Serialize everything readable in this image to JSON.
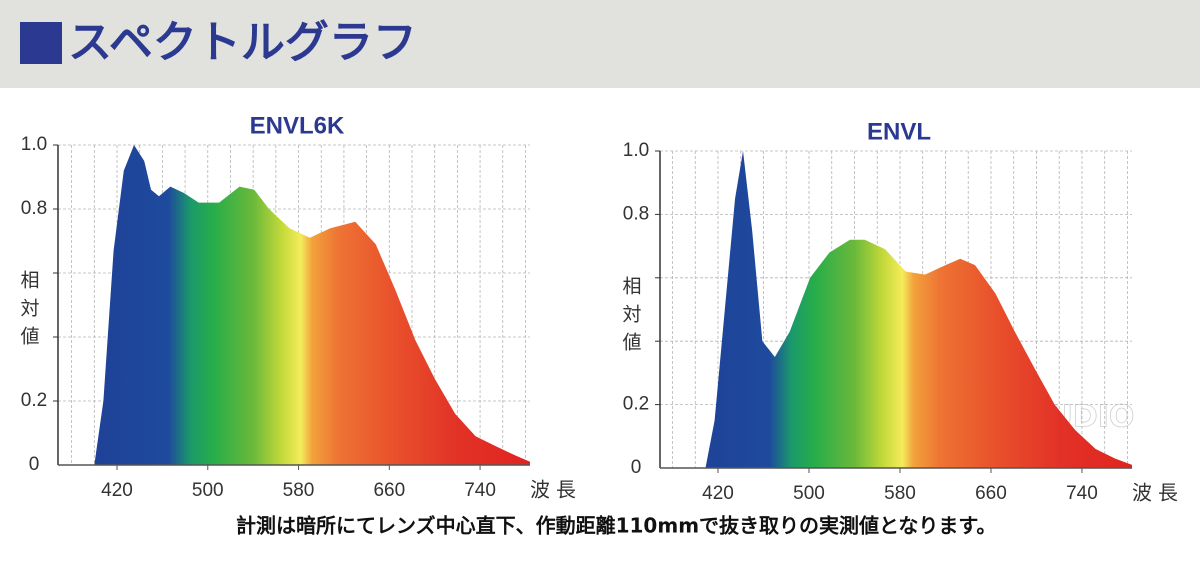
{
  "header": {
    "title": "スペクトルグラフ"
  },
  "chart_data": [
    {
      "type": "area",
      "title": "ENVL6K",
      "xlabel": "波長",
      "ylabel": "相対値",
      "x": [
        400,
        408,
        417,
        426,
        435,
        444,
        450,
        457,
        467,
        479,
        492,
        510,
        528,
        541,
        554,
        572,
        590,
        608,
        630,
        648,
        665,
        683,
        700,
        718,
        736,
        753,
        771,
        784
      ],
      "values": [
        0,
        0.2,
        0.67,
        0.92,
        1.0,
        0.95,
        0.86,
        0.84,
        0.87,
        0.85,
        0.82,
        0.82,
        0.87,
        0.86,
        0.8,
        0.74,
        0.71,
        0.74,
        0.76,
        0.69,
        0.55,
        0.39,
        0.27,
        0.16,
        0.09,
        0.06,
        0.03,
        0.01
      ],
      "xlim": [
        368,
        784
      ],
      "ylim": [
        0,
        1
      ],
      "xticks": [
        420,
        500,
        580,
        660,
        740
      ],
      "yticks": [
        0,
        0.2,
        0.8,
        {
          "value": 1,
          "label": "1.0"
        }
      ],
      "grid": true,
      "xgrid": [
        380,
        400,
        420,
        440,
        460,
        480,
        500,
        520,
        540,
        560,
        580,
        600,
        620,
        640,
        660,
        680,
        700,
        720,
        740,
        760,
        780
      ],
      "ygrid": [
        0.2,
        0.4,
        0.6,
        0.8,
        1
      ]
    },
    {
      "type": "area",
      "title": "ENVL",
      "xlabel": "波長",
      "ylabel": "相対値",
      "x": [
        409,
        417,
        426,
        435,
        442,
        450,
        459,
        470,
        483,
        501,
        518,
        536,
        549,
        567,
        585,
        602,
        620,
        633,
        646,
        664,
        681,
        699,
        716,
        734,
        752,
        769,
        784
      ],
      "values": [
        0,
        0.15,
        0.5,
        0.85,
        1.0,
        0.75,
        0.4,
        0.35,
        0.43,
        0.6,
        0.68,
        0.72,
        0.72,
        0.69,
        0.62,
        0.61,
        0.64,
        0.66,
        0.64,
        0.55,
        0.43,
        0.31,
        0.2,
        0.12,
        0.06,
        0.03,
        0.01
      ],
      "xlim": [
        369,
        784
      ],
      "ylim": [
        0,
        1
      ],
      "xticks": [
        420,
        500,
        580,
        660,
        740
      ],
      "yticks": [
        0,
        0.2,
        0.8,
        {
          "value": 1,
          "label": "1.0"
        }
      ],
      "grid": true,
      "xgrid": [
        380,
        400,
        420,
        440,
        460,
        480,
        500,
        520,
        540,
        560,
        580,
        600,
        620,
        640,
        660,
        680,
        700,
        720,
        740,
        760,
        780
      ],
      "ygrid": [
        0.2,
        0.4,
        0.6,
        0.8,
        1
      ]
    }
  ],
  "watermark": "LOUPE STUDIO",
  "note": "計測は暗所にてレンズ中心直下、作動距離110mmで抜き取りの実測値となります。"
}
